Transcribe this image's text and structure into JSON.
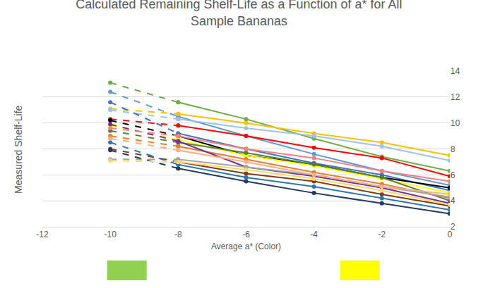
{
  "chart_data": {
    "type": "line",
    "title": "Calculated Remaining Shelf-Life as a Function of a* for All\nSample Bananas",
    "x_label": "Average a* (Color)",
    "y_label": "Measured Shelf-Life",
    "x": [
      -10,
      -8,
      -6,
      -4,
      -2,
      0
    ],
    "xlim": [
      -12,
      0
    ],
    "xticks": [
      -12,
      -10,
      -8,
      -6,
      -4,
      -2,
      0
    ],
    "ylim": [
      2,
      14
    ],
    "yticks": [
      2,
      4,
      6,
      8,
      10,
      12,
      14
    ],
    "grid": true,
    "marker": "circle",
    "series": [
      {
        "color": "#70ad47",
        "line_style": "dashed",
        "values": [
          13.1,
          11.6,
          null,
          null,
          null,
          null
        ]
      },
      {
        "color": "#70ad47",
        "line_style": "solid",
        "values": [
          null,
          11.6,
          10.3,
          8.8,
          7.4,
          6.3
        ]
      },
      {
        "color": "#5b9bd5",
        "line_style": "dashed",
        "values": [
          12.4,
          10.5,
          null,
          null,
          null,
          null
        ]
      },
      {
        "color": "#5b9bd5",
        "line_style": "solid",
        "values": [
          null,
          10.5,
          9.0,
          7.6,
          6.3,
          5.2
        ]
      },
      {
        "color": "#ffc000",
        "line_style": "dashed",
        "values": [
          11.1,
          10.7,
          null,
          null,
          null,
          null
        ]
      },
      {
        "color": "#ffc000",
        "line_style": "solid",
        "values": [
          null,
          10.7,
          10.0,
          9.2,
          8.5,
          7.5
        ]
      },
      {
        "color": "#9dc3e6",
        "line_style": "dashed",
        "values": [
          11.0,
          10.3,
          null,
          null,
          null,
          null
        ]
      },
      {
        "color": "#9dc3e6",
        "line_style": "solid",
        "values": [
          null,
          10.3,
          9.6,
          9.0,
          8.2,
          7.1
        ]
      },
      {
        "color": "#ff0000",
        "line_style": "dashed",
        "values": [
          10.3,
          9.8,
          null,
          null,
          null,
          null
        ]
      },
      {
        "color": "#ff0000",
        "line_style": "solid",
        "values": [
          null,
          9.8,
          9.0,
          8.1,
          7.3,
          5.9
        ]
      },
      {
        "color": "#4472c4",
        "line_style": "dashed",
        "values": [
          11.6,
          9.2,
          null,
          null,
          null,
          null
        ]
      },
      {
        "color": "#4472c4",
        "line_style": "solid",
        "values": [
          null,
          9.2,
          8.0,
          6.9,
          6.0,
          4.8
        ]
      },
      {
        "color": "#000000",
        "line_style": "dashed",
        "values": [
          10.2,
          9.0,
          null,
          null,
          null,
          null
        ]
      },
      {
        "color": "#000000",
        "line_style": "solid",
        "values": [
          null,
          9.0,
          7.5,
          6.8,
          5.8,
          5.0
        ]
      },
      {
        "color": "#ffff00",
        "line_style": "dashed",
        "values": [
          9.8,
          8.7,
          null,
          null,
          null,
          null
        ]
      },
      {
        "color": "#ffff00",
        "line_style": "solid",
        "values": [
          null,
          8.7,
          7.5,
          6.7,
          5.7,
          4.6
        ]
      },
      {
        "color": "#548235",
        "line_style": "dashed",
        "values": [
          9.4,
          8.5,
          null,
          null,
          null,
          null
        ]
      },
      {
        "color": "#548235",
        "line_style": "solid",
        "values": [
          null,
          8.5,
          7.7,
          6.8,
          5.8,
          4.0
        ]
      },
      {
        "color": "#ed7d31",
        "line_style": "dashed",
        "values": [
          9.0,
          8.2,
          null,
          null,
          null,
          null
        ]
      },
      {
        "color": "#ed7d31",
        "line_style": "solid",
        "values": [
          null,
          8.2,
          7.2,
          6.2,
          5.3,
          4.2
        ]
      },
      {
        "color": "#7030a0",
        "line_style": "dashed",
        "values": [
          9.9,
          8.6,
          null,
          null,
          null,
          null
        ]
      },
      {
        "color": "#7030a0",
        "line_style": "solid",
        "values": [
          null,
          8.6,
          6.6,
          5.9,
          5.0,
          3.8
        ]
      },
      {
        "color": "#a5a5a5",
        "line_style": "dashed",
        "values": [
          7.2,
          7.2,
          null,
          null,
          null,
          null
        ]
      },
      {
        "color": "#a5a5a5",
        "line_style": "solid",
        "values": [
          null,
          7.2,
          6.6,
          6.0,
          5.1,
          4.3
        ]
      },
      {
        "color": "#843c0c",
        "line_style": "dashed",
        "values": [
          8.0,
          7.0,
          null,
          null,
          null,
          null
        ]
      },
      {
        "color": "#843c0c",
        "line_style": "solid",
        "values": [
          null,
          7.0,
          6.1,
          5.5,
          4.5,
          3.6
        ]
      },
      {
        "color": "#203864",
        "line_style": "dashed",
        "values": [
          7.9,
          6.5,
          null,
          null,
          null,
          null
        ]
      },
      {
        "color": "#203864",
        "line_style": "solid",
        "values": [
          null,
          6.5,
          5.5,
          4.6,
          3.8,
          3.0
        ]
      },
      {
        "color": "#2e75b6",
        "line_style": "dashed",
        "values": [
          8.5,
          6.8,
          null,
          null,
          null,
          null
        ]
      },
      {
        "color": "#2e75b6",
        "line_style": "solid",
        "values": [
          null,
          6.8,
          5.8,
          5.1,
          4.2,
          3.3
        ]
      },
      {
        "color": "#f4b183",
        "line_style": "dashed",
        "values": [
          8.8,
          7.9,
          null,
          null,
          null,
          null
        ]
      },
      {
        "color": "#f4b183",
        "line_style": "solid",
        "values": [
          null,
          7.9,
          7.0,
          6.0,
          5.1,
          4.5
        ]
      },
      {
        "color": "#ff7c80",
        "line_style": "dashed",
        "values": [
          9.6,
          9.0,
          null,
          null,
          null,
          null
        ]
      },
      {
        "color": "#ff7c80",
        "line_style": "solid",
        "values": [
          null,
          9.0,
          8.0,
          7.3,
          6.3,
          5.5
        ]
      },
      {
        "color": "#ffd966",
        "line_style": "dashed",
        "values": [
          7.1,
          7.0,
          null,
          null,
          null,
          null
        ]
      },
      {
        "color": "#ffd966",
        "line_style": "solid",
        "values": [
          null,
          7.0,
          6.4,
          5.7,
          4.8,
          3.7
        ]
      }
    ]
  }
}
